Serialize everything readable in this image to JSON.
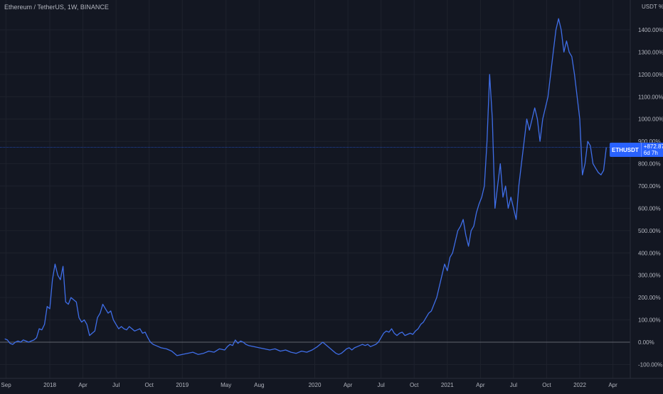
{
  "header": {
    "title": "Ethereum / TetherUS, 1W, BINANCE",
    "unit": "USDT %"
  },
  "badge": {
    "symbol": "ETHUSDT",
    "value": "+872.87%",
    "countdown": "6d 7h"
  },
  "chart_data": {
    "type": "line",
    "title": "Ethereum / TetherUS, 1W, BINANCE",
    "xlabel": "",
    "ylabel": "USDT %",
    "ylim": [
      -130,
      1480
    ],
    "xlim": [
      2017.66,
      2022.51
    ],
    "grid": true,
    "y_ticks": [
      -100,
      0,
      100,
      200,
      300,
      400,
      500,
      600,
      700,
      800,
      900,
      1000,
      1100,
      1200,
      1300,
      1400
    ],
    "y_tick_labels": [
      "-100.00%",
      "0.00%",
      "100.00%",
      "200.00%",
      "300.00%",
      "400.00%",
      "500.00%",
      "600.00%",
      "700.00%",
      "800.00%",
      "900.00%",
      "1000.00%",
      "1100.00%",
      "1200.00%",
      "1300.00%",
      "1400.00%"
    ],
    "x_ticks": [
      {
        "label": "Sep",
        "x": 2017.67
      },
      {
        "label": "2018",
        "x": 2018.0
      },
      {
        "label": "Apr",
        "x": 2018.25
      },
      {
        "label": "Jul",
        "x": 2018.5
      },
      {
        "label": "Oct",
        "x": 2018.75
      },
      {
        "label": "2019",
        "x": 2019.0
      },
      {
        "label": "May",
        "x": 2019.33
      },
      {
        "label": "Aug",
        "x": 2019.58
      },
      {
        "label": "2020",
        "x": 2020.0
      },
      {
        "label": "Apr",
        "x": 2020.25
      },
      {
        "label": "Jul",
        "x": 2020.5
      },
      {
        "label": "Oct",
        "x": 2020.75
      },
      {
        "label": "2021",
        "x": 2021.0
      },
      {
        "label": "Apr",
        "x": 2021.25
      },
      {
        "label": "Jul",
        "x": 2021.5
      },
      {
        "label": "Oct",
        "x": 2021.75
      },
      {
        "label": "2022",
        "x": 2022.0
      },
      {
        "label": "Apr",
        "x": 2022.25
      }
    ],
    "last_value": 872.87,
    "series": [
      {
        "color": "#3f6ee8",
        "x": [
          2017.66,
          2017.68,
          2017.7,
          2017.72,
          2017.74,
          2017.76,
          2017.78,
          2017.8,
          2017.82,
          2017.84,
          2017.86,
          2017.88,
          2017.9,
          2017.92,
          2017.94,
          2017.96,
          2017.98,
          2018.0,
          2018.02,
          2018.04,
          2018.06,
          2018.08,
          2018.1,
          2018.12,
          2018.14,
          2018.16,
          2018.18,
          2018.2,
          2018.22,
          2018.24,
          2018.26,
          2018.28,
          2018.3,
          2018.32,
          2018.34,
          2018.36,
          2018.38,
          2018.4,
          2018.42,
          2018.44,
          2018.46,
          2018.48,
          2018.5,
          2018.52,
          2018.54,
          2018.56,
          2018.58,
          2018.6,
          2018.62,
          2018.64,
          2018.66,
          2018.68,
          2018.7,
          2018.72,
          2018.74,
          2018.76,
          2018.78,
          2018.8,
          2018.84,
          2018.88,
          2018.92,
          2018.96,
          2019.0,
          2019.04,
          2019.08,
          2019.12,
          2019.16,
          2019.2,
          2019.24,
          2019.28,
          2019.32,
          2019.34,
          2019.36,
          2019.38,
          2019.4,
          2019.42,
          2019.44,
          2019.46,
          2019.48,
          2019.5,
          2019.54,
          2019.58,
          2019.62,
          2019.66,
          2019.7,
          2019.74,
          2019.78,
          2019.82,
          2019.86,
          2019.9,
          2019.94,
          2019.98,
          2020.02,
          2020.06,
          2020.08,
          2020.1,
          2020.12,
          2020.14,
          2020.16,
          2020.18,
          2020.2,
          2020.22,
          2020.24,
          2020.26,
          2020.28,
          2020.3,
          2020.32,
          2020.34,
          2020.36,
          2020.38,
          2020.4,
          2020.42,
          2020.44,
          2020.46,
          2020.48,
          2020.5,
          2020.52,
          2020.54,
          2020.56,
          2020.58,
          2020.6,
          2020.62,
          2020.64,
          2020.66,
          2020.68,
          2020.7,
          2020.72,
          2020.74,
          2020.76,
          2020.78,
          2020.8,
          2020.82,
          2020.84,
          2020.86,
          2020.88,
          2020.9,
          2020.92,
          2020.94,
          2020.96,
          2020.98,
          2021.0,
          2021.02,
          2021.04,
          2021.06,
          2021.08,
          2021.1,
          2021.12,
          2021.14,
          2021.16,
          2021.18,
          2021.2,
          2021.22,
          2021.24,
          2021.26,
          2021.28,
          2021.3,
          2021.32,
          2021.34,
          2021.36,
          2021.38,
          2021.4,
          2021.42,
          2021.44,
          2021.46,
          2021.48,
          2021.5,
          2021.52,
          2021.54,
          2021.56,
          2021.58,
          2021.6,
          2021.62,
          2021.64,
          2021.66,
          2021.68,
          2021.7,
          2021.72,
          2021.74,
          2021.76,
          2021.78,
          2021.8,
          2021.82,
          2021.84,
          2021.86,
          2021.88,
          2021.9,
          2021.92,
          2021.94,
          2021.96,
          2021.98,
          2022.0,
          2022.02,
          2022.04,
          2022.06,
          2022.08,
          2022.1,
          2022.12,
          2022.14,
          2022.16,
          2022.18,
          2022.2
        ],
        "values": [
          15,
          10,
          -5,
          -10,
          0,
          5,
          0,
          10,
          5,
          0,
          5,
          10,
          20,
          60,
          55,
          80,
          160,
          150,
          280,
          350,
          300,
          280,
          340,
          180,
          170,
          200,
          190,
          180,
          110,
          90,
          100,
          80,
          30,
          40,
          50,
          110,
          130,
          170,
          150,
          130,
          140,
          100,
          80,
          60,
          70,
          60,
          55,
          70,
          60,
          50,
          55,
          60,
          40,
          45,
          20,
          0,
          -10,
          -15,
          -25,
          -30,
          -40,
          -60,
          -55,
          -50,
          -45,
          -55,
          -50,
          -40,
          -45,
          -30,
          -35,
          -20,
          -10,
          -15,
          10,
          -5,
          5,
          0,
          -10,
          -15,
          -20,
          -25,
          -30,
          -35,
          -30,
          -40,
          -35,
          -45,
          -50,
          -40,
          -45,
          -35,
          -20,
          0,
          -10,
          -20,
          -30,
          -40,
          -50,
          -55,
          -50,
          -40,
          -30,
          -25,
          -35,
          -25,
          -20,
          -15,
          -10,
          -15,
          -10,
          -20,
          -15,
          -10,
          0,
          20,
          40,
          50,
          45,
          60,
          40,
          30,
          40,
          45,
          30,
          35,
          40,
          35,
          50,
          60,
          80,
          90,
          110,
          130,
          140,
          170,
          200,
          250,
          300,
          350,
          320,
          380,
          400,
          450,
          500,
          520,
          550,
          480,
          430,
          500,
          520,
          580,
          620,
          650,
          700,
          900,
          1200,
          1000,
          600,
          700,
          800,
          650,
          700,
          600,
          650,
          600,
          550,
          700,
          800,
          900,
          1000,
          950,
          1000,
          1050,
          1000,
          900,
          1000,
          1050,
          1100,
          1200,
          1300,
          1400,
          1450,
          1400,
          1300,
          1350,
          1300,
          1280,
          1200,
          1100,
          1000,
          750,
          800,
          900,
          880,
          800,
          780,
          760,
          750,
          770,
          873
        ]
      }
    ]
  }
}
